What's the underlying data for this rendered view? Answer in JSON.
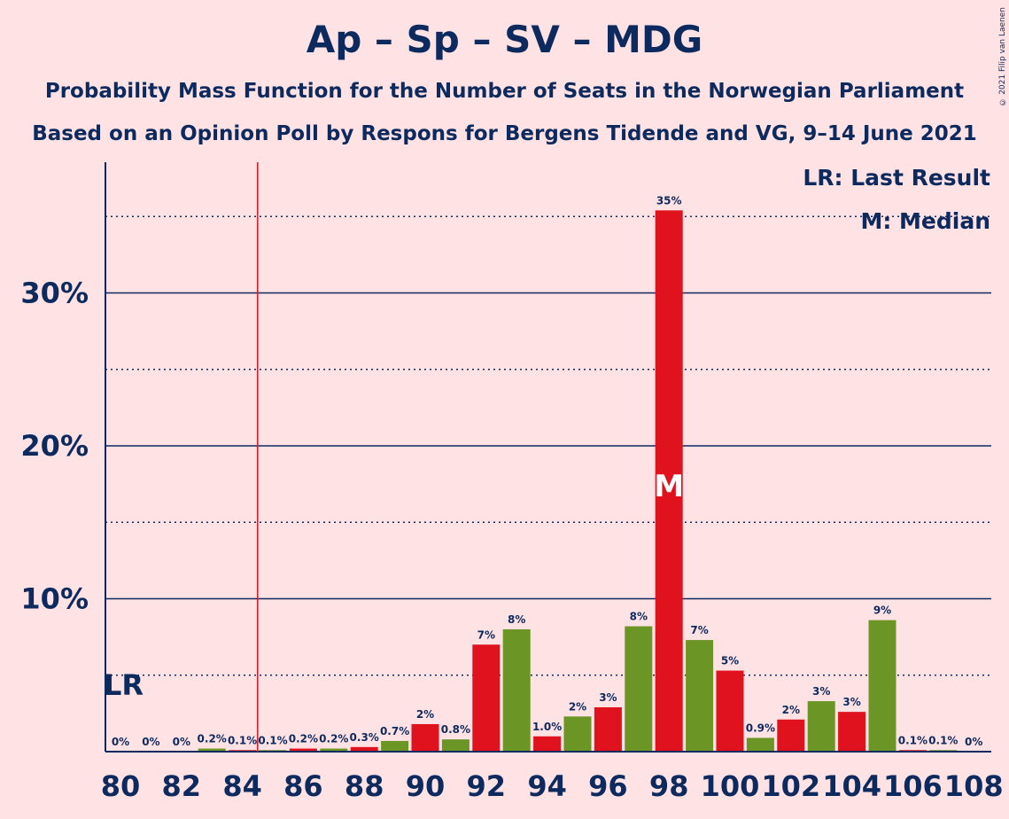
{
  "title": "Ap – Sp – SV – MDG",
  "subtitle_1": "Probability Mass Function for the Number of Seats in the Norwegian Parliament",
  "subtitle_2": "Based on an Opinion Poll by Respons for Bergens Tidende and VG, 9–14 June 2021",
  "copyright": "© 2021 Filip van Laenen",
  "legend": {
    "last_result": "LR: Last Result",
    "median": "M: Median"
  },
  "markers": {
    "last_result_label": "LR",
    "last_result_seat": 84.5,
    "median_label": "M",
    "median_seat": 98
  },
  "colors": {
    "background": "#FFE2E4",
    "text": "#0D2A5E",
    "red": "#E0121E",
    "green": "#6B9524",
    "lr_line": "#E0121E"
  },
  "chart_data": {
    "type": "bar",
    "xlabel": "",
    "ylabel": "",
    "ylim": [
      0,
      38
    ],
    "yticks_major": [
      10,
      20,
      30
    ],
    "ytick_labels": [
      "10%",
      "20%",
      "30%"
    ],
    "ygrid_dotted": [
      5,
      15,
      25,
      35
    ],
    "xticks": [
      80,
      82,
      84,
      86,
      88,
      90,
      92,
      94,
      96,
      98,
      100,
      102,
      104,
      106,
      108
    ],
    "bars": [
      {
        "seats": 80,
        "value": 0,
        "label": "0%",
        "color": "red"
      },
      {
        "seats": 81,
        "value": 0,
        "label": "0%",
        "color": "green"
      },
      {
        "seats": 82,
        "value": 0,
        "label": "0%",
        "color": "red"
      },
      {
        "seats": 83,
        "value": 0.2,
        "label": "0.2%",
        "color": "green"
      },
      {
        "seats": 84,
        "value": 0.1,
        "label": "0.1%",
        "color": "red"
      },
      {
        "seats": 85,
        "value": 0.1,
        "label": "0.1%",
        "color": "green"
      },
      {
        "seats": 86,
        "value": 0.2,
        "label": "0.2%",
        "color": "red"
      },
      {
        "seats": 87,
        "value": 0.2,
        "label": "0.2%",
        "color": "green"
      },
      {
        "seats": 88,
        "value": 0.3,
        "label": "0.3%",
        "color": "red"
      },
      {
        "seats": 89,
        "value": 0.7,
        "label": "0.7%",
        "color": "green"
      },
      {
        "seats": 90,
        "value": 1.8,
        "label": "2%",
        "color": "red"
      },
      {
        "seats": 91,
        "value": 0.8,
        "label": "0.8%",
        "color": "green"
      },
      {
        "seats": 92,
        "value": 7.0,
        "label": "7%",
        "color": "red"
      },
      {
        "seats": 93,
        "value": 8.0,
        "label": "8%",
        "color": "green"
      },
      {
        "seats": 94,
        "value": 1.0,
        "label": "1.0%",
        "color": "red"
      },
      {
        "seats": 95,
        "value": 2.3,
        "label": "2%",
        "color": "green"
      },
      {
        "seats": 96,
        "value": 2.9,
        "label": "3%",
        "color": "red"
      },
      {
        "seats": 97,
        "value": 8.2,
        "label": "8%",
        "color": "green"
      },
      {
        "seats": 98,
        "value": 35.4,
        "label": "35%",
        "color": "red"
      },
      {
        "seats": 99,
        "value": 7.3,
        "label": "7%",
        "color": "green"
      },
      {
        "seats": 100,
        "value": 5.3,
        "label": "5%",
        "color": "red"
      },
      {
        "seats": 101,
        "value": 0.9,
        "label": "0.9%",
        "color": "green"
      },
      {
        "seats": 102,
        "value": 2.1,
        "label": "2%",
        "color": "red"
      },
      {
        "seats": 103,
        "value": 3.3,
        "label": "3%",
        "color": "green"
      },
      {
        "seats": 104,
        "value": 2.6,
        "label": "3%",
        "color": "red"
      },
      {
        "seats": 105,
        "value": 8.6,
        "label": "9%",
        "color": "green"
      },
      {
        "seats": 106,
        "value": 0.1,
        "label": "0.1%",
        "color": "red"
      },
      {
        "seats": 107,
        "value": 0.1,
        "label": "0.1%",
        "color": "green"
      },
      {
        "seats": 108,
        "value": 0,
        "label": "0%",
        "color": "red"
      }
    ]
  }
}
